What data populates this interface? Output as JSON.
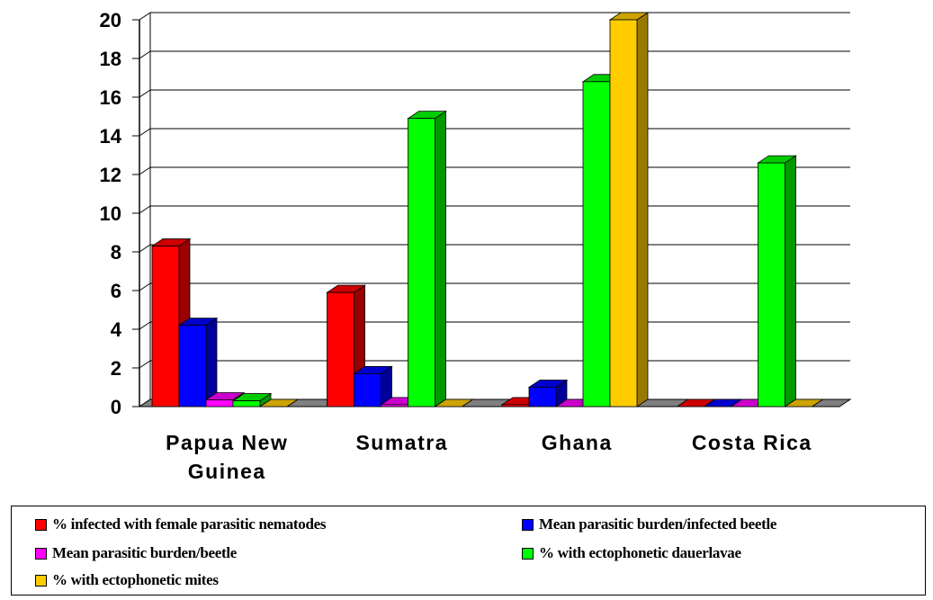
{
  "chart_data": {
    "type": "bar",
    "categories": [
      "Papua New Guinea",
      "Sumatra",
      "Ghana",
      "Costa Rica"
    ],
    "category_lines": [
      [
        "Papua New",
        "Guinea"
      ],
      [
        "Sumatra"
      ],
      [
        "Ghana"
      ],
      [
        "Costa Rica"
      ]
    ],
    "ylim": [
      0,
      20
    ],
    "yticks": [
      0,
      2,
      4,
      6,
      8,
      10,
      12,
      14,
      16,
      18,
      20
    ],
    "grid": true,
    "legend_position": "bottom",
    "series": [
      {
        "name": "% infected with female parasitic nematodes",
        "color": "#ff0000",
        "values": [
          8.3,
          5.9,
          0.1,
          0
        ]
      },
      {
        "name": "Mean parasitic burden/infected beetle",
        "color": "#0000ff",
        "values": [
          4.2,
          1.7,
          1.0,
          0
        ]
      },
      {
        "name": "Mean parasitic burden/beetle",
        "color": "#ff00ff",
        "values": [
          0.35,
          0.1,
          0,
          0
        ]
      },
      {
        "name": "% with ectophonetic dauerlavae",
        "color": "#00ff00",
        "values": [
          0.3,
          14.9,
          16.8,
          12.6
        ]
      },
      {
        "name": "% with ectophonetic mites",
        "color": "#ffcc00",
        "values": [
          0,
          0,
          20,
          0
        ]
      }
    ]
  }
}
